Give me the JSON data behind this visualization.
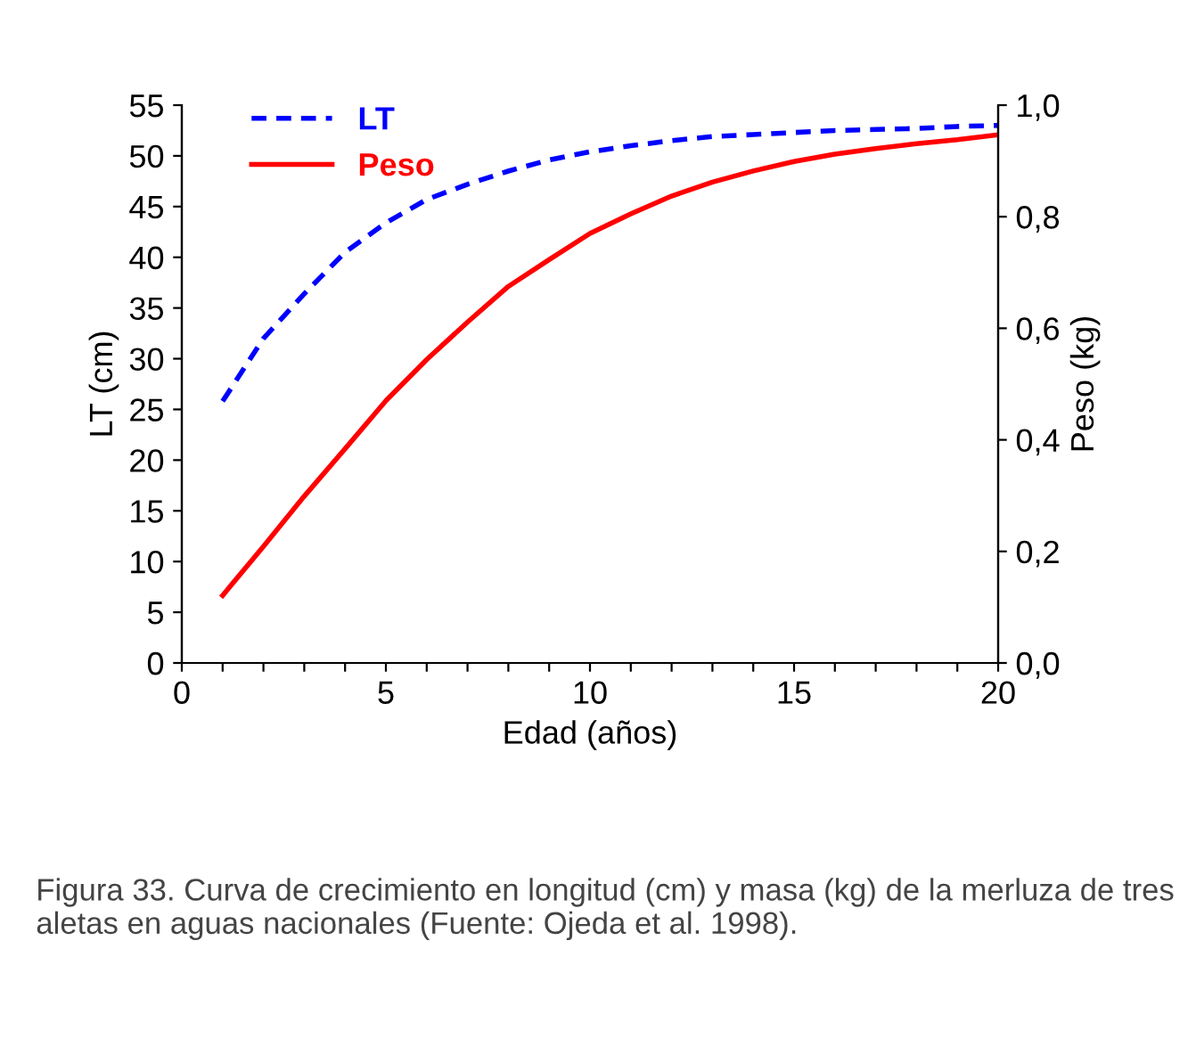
{
  "chart_data": {
    "type": "line",
    "xlabel": "Edad (años)",
    "ylabel": "LT (cm)",
    "y2label": "Peso (kg)",
    "x": [
      1,
      2,
      3,
      4,
      5,
      6,
      7,
      8,
      9,
      10,
      11,
      12,
      13,
      14,
      15,
      16,
      17,
      18,
      19,
      20
    ],
    "series": [
      {
        "name": "LT",
        "color": "#0000ff",
        "line_style": "dashed",
        "values": [
          25.8,
          32.0,
          36.4,
          40.5,
          43.4,
          45.7,
          47.2,
          48.5,
          49.6,
          50.4,
          51.0,
          51.5,
          51.9,
          52.1,
          52.3,
          52.5,
          52.6,
          52.7,
          52.9,
          53.0
        ]
      },
      {
        "name": "Peso",
        "color": "#ff0000",
        "line_style": "solid",
        "axis": "y2",
        "values": [
          0.121,
          0.209,
          0.299,
          0.384,
          0.47,
          0.544,
          0.611,
          0.675,
          0.723,
          0.77,
          0.805,
          0.837,
          0.862,
          0.882,
          0.899,
          0.912,
          0.922,
          0.931,
          0.938,
          0.947
        ]
      }
    ],
    "xlim": [
      0,
      20
    ],
    "xticks": [
      0,
      {
        "value": 1,
        "label": null
      },
      {
        "value": 2,
        "label": null
      },
      {
        "value": 3,
        "label": null
      },
      {
        "value": 4,
        "label": null
      },
      5,
      {
        "value": 6,
        "label": null
      },
      {
        "value": 7,
        "label": null
      },
      {
        "value": 8,
        "label": null
      },
      {
        "value": 9,
        "label": null
      },
      10,
      {
        "value": 11,
        "label": null
      },
      {
        "value": 12,
        "label": null
      },
      {
        "value": 13,
        "label": null
      },
      {
        "value": 14,
        "label": null
      },
      15,
      {
        "value": 16,
        "label": null
      },
      {
        "value": 17,
        "label": null
      },
      {
        "value": 18,
        "label": null
      },
      {
        "value": 19,
        "label": null
      },
      20
    ],
    "ylim": [
      0,
      55
    ],
    "yticks": [
      0,
      5,
      10,
      15,
      20,
      25,
      30,
      35,
      40,
      45,
      50,
      55
    ],
    "y2lim": [
      0,
      1
    ],
    "y2ticks": [
      {
        "value": 0,
        "label": "0,0"
      },
      {
        "value": 0.2,
        "label": "0,2"
      },
      {
        "value": 0.4,
        "label": "0,4"
      },
      {
        "value": 0.6,
        "label": "0,6"
      },
      {
        "value": 0.8,
        "label": "0,8"
      },
      {
        "value": 1,
        "label": "1,0"
      }
    ],
    "grid": false,
    "legend": "top left",
    "marker": "none",
    "annotations": [
      "Figura 33. Curva de crecimiento en longitud (cm) y masa (kg) de la merluza de tres aletas en aguas nacionales (Fuente: Ojeda et al. 1998)."
    ]
  }
}
